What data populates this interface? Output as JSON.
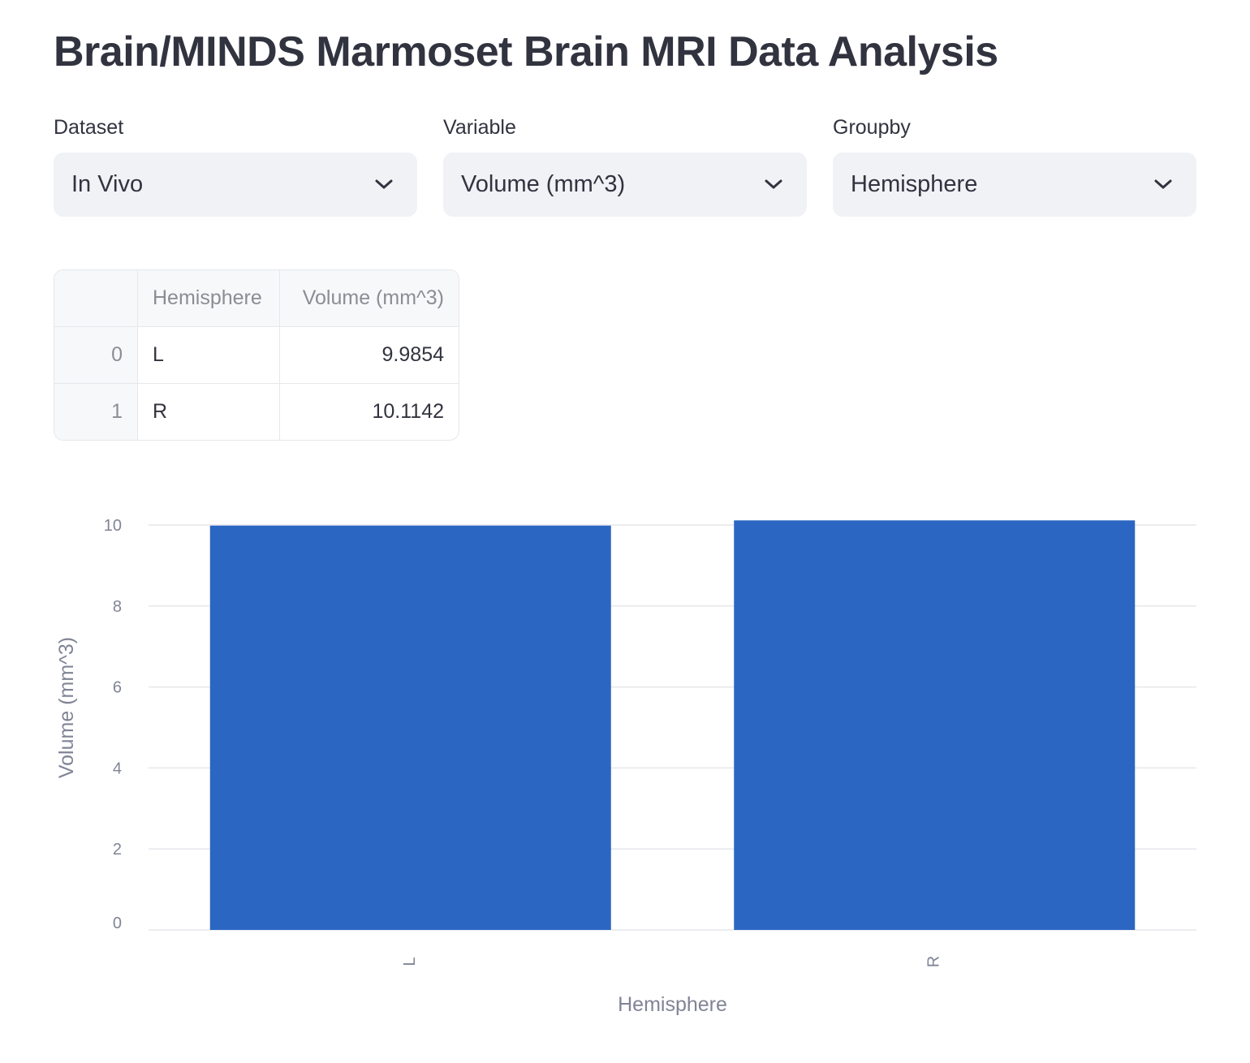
{
  "page": {
    "title": "Brain/MINDS Marmoset Brain MRI Data Analysis"
  },
  "controls": {
    "dataset": {
      "label": "Dataset",
      "value": "In Vivo"
    },
    "variable": {
      "label": "Variable",
      "value": "Volume (mm^3)"
    },
    "groupby": {
      "label": "Groupby",
      "value": "Hemisphere"
    }
  },
  "table": {
    "columns": [
      "",
      "Hemisphere",
      "Volume (mm^3)"
    ],
    "rows": [
      {
        "index": "0",
        "hemisphere": "L",
        "volume": "9.9854"
      },
      {
        "index": "1",
        "hemisphere": "R",
        "volume": "10.1142"
      }
    ]
  },
  "chart_data": {
    "type": "bar",
    "categories": [
      "L",
      "R"
    ],
    "values": [
      9.9854,
      10.1142
    ],
    "title": "",
    "xlabel": "Hemisphere",
    "ylabel": "Volume (mm^3)",
    "ylim": [
      0,
      10
    ],
    "yticks": [
      0,
      2,
      4,
      6,
      8,
      10
    ],
    "grid": true,
    "bar_color": "#2b66c2"
  },
  "icons": {
    "select_chevron": "chevron-down-icon"
  }
}
